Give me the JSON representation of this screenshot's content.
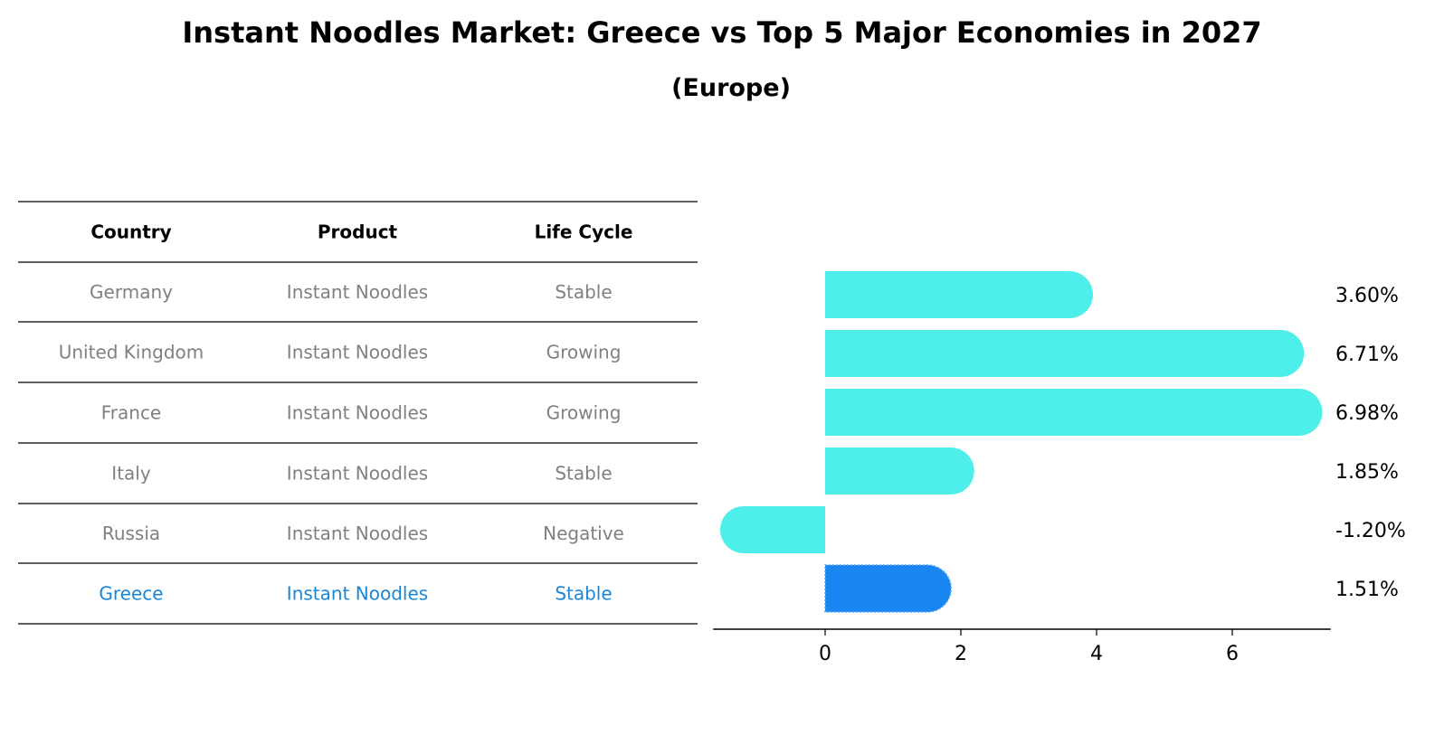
{
  "chart_data": {
    "type": "bar",
    "orientation": "horizontal",
    "title": "Instant Noodles Market: Greece vs Top 5 Major Economies in 2027",
    "subtitle": "(Europe)",
    "table": {
      "columns": [
        "Country",
        "Product",
        "Life Cycle"
      ],
      "rows": [
        {
          "country": "Germany",
          "product": "Instant Noodles",
          "life_cycle": "Stable"
        },
        {
          "country": "United Kingdom",
          "product": "Instant Noodles",
          "life_cycle": "Growing"
        },
        {
          "country": "France",
          "product": "Instant Noodles",
          "life_cycle": "Growing"
        },
        {
          "country": "Italy",
          "product": "Instant Noodles",
          "life_cycle": "Stable"
        },
        {
          "country": "Russia",
          "product": "Instant Noodles",
          "life_cycle": "Negative"
        },
        {
          "country": "Greece",
          "product": "Instant Noodles",
          "life_cycle": "Stable"
        }
      ]
    },
    "categories": [
      "Germany",
      "United Kingdom",
      "France",
      "Italy",
      "Russia",
      "Greece"
    ],
    "values": [
      3.6,
      6.71,
      6.98,
      1.85,
      -1.2,
      1.51
    ],
    "value_labels": [
      "3.60%",
      "6.71%",
      "6.98%",
      "1.85%",
      "-1.20%",
      "1.51%"
    ],
    "highlight": "Greece",
    "xlim": [
      -1.65,
      7.45
    ],
    "xticks": [
      0,
      2,
      4,
      6
    ],
    "xlabel": "",
    "ylabel": "",
    "grid": false,
    "colors": {
      "bar": "#4EEEEA",
      "highlight_bar": "#1A86F1",
      "highlight_text": "#1A86D6",
      "muted_text": "#808080"
    }
  }
}
